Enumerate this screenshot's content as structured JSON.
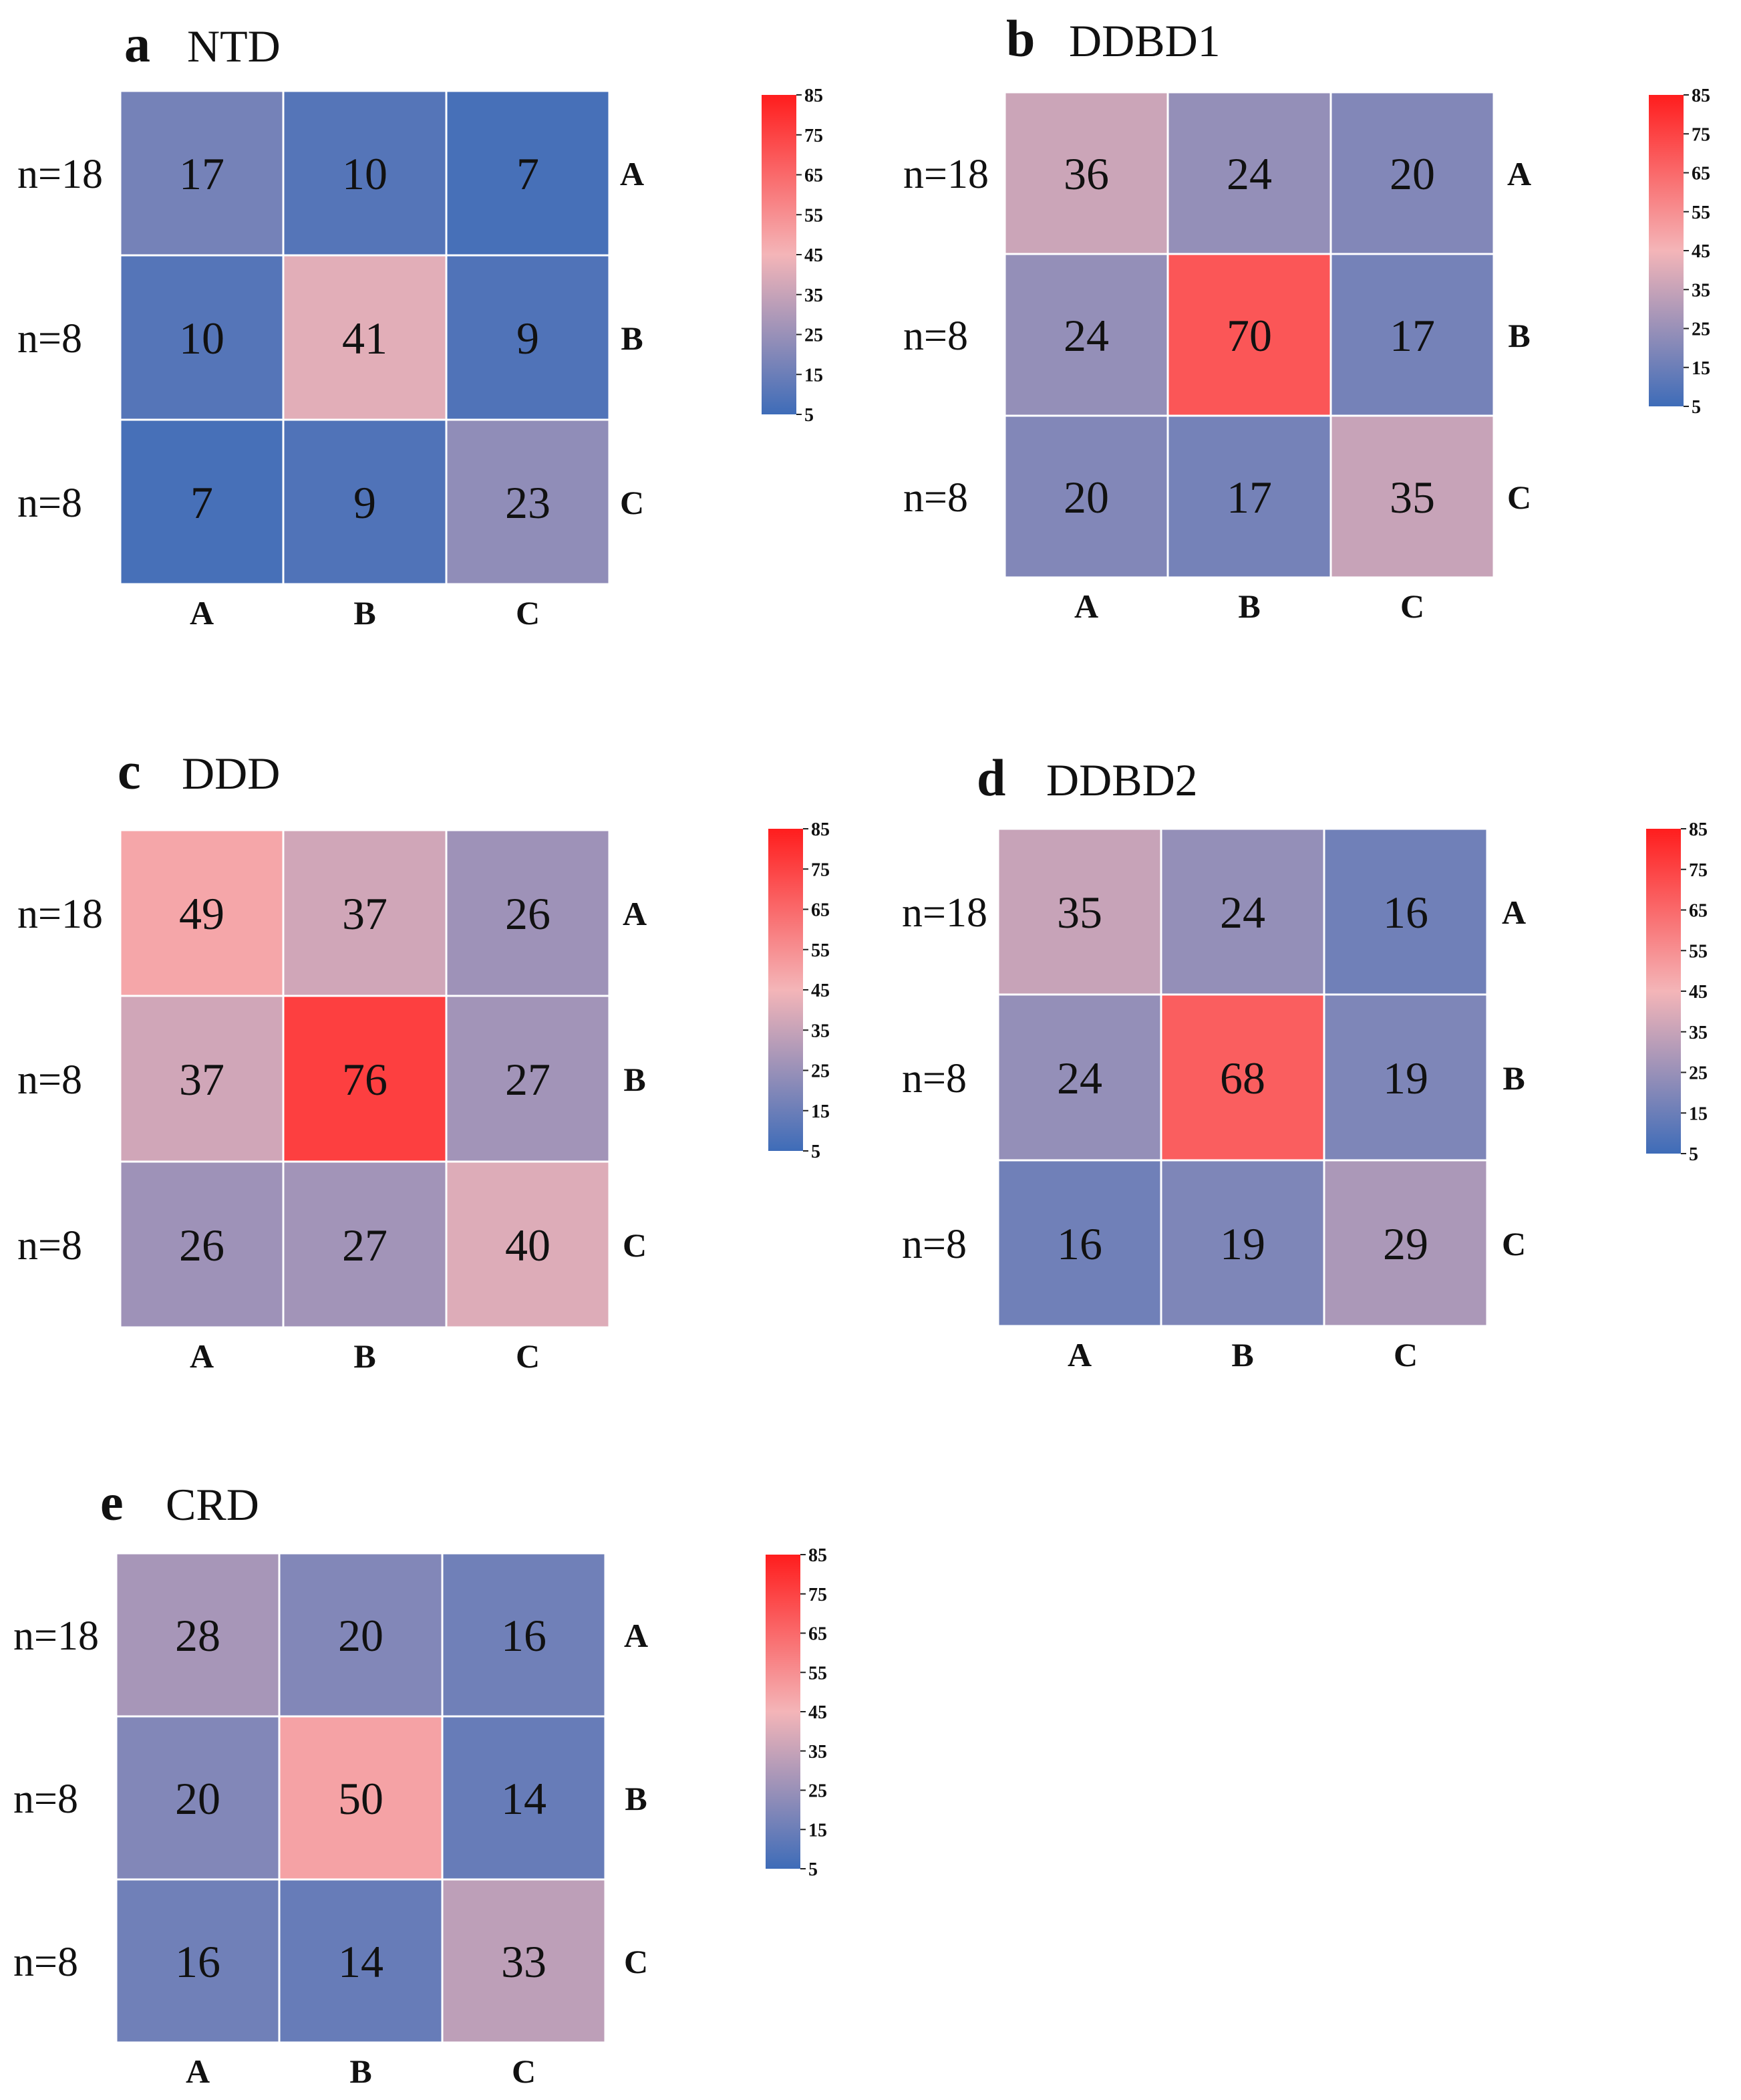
{
  "chart_data": [
    {
      "type": "heatmap",
      "panel": "a",
      "title": "NTD",
      "row_labels": [
        "n=18",
        "n=8",
        "n=8"
      ],
      "row_categories": [
        "A",
        "B",
        "C"
      ],
      "col_categories": [
        "A",
        "B",
        "C"
      ],
      "values": [
        [
          17,
          10,
          7
        ],
        [
          10,
          41,
          9
        ],
        [
          7,
          9,
          23
        ]
      ],
      "colorbar": {
        "ticks": [
          "85",
          "75",
          "65",
          "55",
          "45",
          "35",
          "25",
          "15",
          "5"
        ],
        "range": [
          5,
          85
        ]
      }
    },
    {
      "type": "heatmap",
      "panel": "b",
      "title": "DDBD1",
      "row_labels": [
        "n=18",
        "n=8",
        "n=8"
      ],
      "row_categories": [
        "A",
        "B",
        "C"
      ],
      "col_categories": [
        "A",
        "B",
        "C"
      ],
      "values": [
        [
          36,
          24,
          20
        ],
        [
          24,
          70,
          17
        ],
        [
          20,
          17,
          35
        ]
      ],
      "colorbar": {
        "ticks": [
          "85",
          "75",
          "65",
          "55",
          "45",
          "35",
          "25",
          "15",
          "5"
        ],
        "range": [
          5,
          85
        ]
      }
    },
    {
      "type": "heatmap",
      "panel": "c",
      "title": "DDD",
      "row_labels": [
        "n=18",
        "n=8",
        "n=8"
      ],
      "row_categories": [
        "A",
        "B",
        "C"
      ],
      "col_categories": [
        "A",
        "B",
        "C"
      ],
      "values": [
        [
          49,
          37,
          26
        ],
        [
          37,
          76,
          27
        ],
        [
          26,
          27,
          40
        ]
      ],
      "colorbar": {
        "ticks": [
          "85",
          "75",
          "65",
          "55",
          "45",
          "35",
          "25",
          "15",
          "5"
        ],
        "range": [
          5,
          85
        ]
      }
    },
    {
      "type": "heatmap",
      "panel": "d",
      "title": "DDBD2",
      "row_labels": [
        "n=18",
        "n=8",
        "n=8"
      ],
      "row_categories": [
        "A",
        "B",
        "C"
      ],
      "col_categories": [
        "A",
        "B",
        "C"
      ],
      "values": [
        [
          35,
          24,
          16
        ],
        [
          24,
          68,
          19
        ],
        [
          16,
          19,
          29
        ]
      ],
      "colorbar": {
        "ticks": [
          "85",
          "75",
          "65",
          "55",
          "45",
          "35",
          "25",
          "15",
          "5"
        ],
        "range": [
          5,
          85
        ]
      }
    },
    {
      "type": "heatmap",
      "panel": "e",
      "title": "CRD",
      "row_labels": [
        "n=18",
        "n=8",
        "n=8"
      ],
      "row_categories": [
        "A",
        "B",
        "C"
      ],
      "col_categories": [
        "A",
        "B",
        "C"
      ],
      "values": [
        [
          28,
          20,
          16
        ],
        [
          20,
          50,
          14
        ],
        [
          16,
          14,
          33
        ]
      ],
      "colorbar": {
        "ticks": [
          "85",
          "75",
          "65",
          "55",
          "45",
          "35",
          "25",
          "15",
          "5"
        ],
        "range": [
          5,
          85
        ]
      }
    }
  ],
  "colors": {
    "low": "#3e6cb8",
    "mid": "#f4b5b8",
    "high": "#ff1d1d",
    "cell_border": "#ffffff"
  }
}
